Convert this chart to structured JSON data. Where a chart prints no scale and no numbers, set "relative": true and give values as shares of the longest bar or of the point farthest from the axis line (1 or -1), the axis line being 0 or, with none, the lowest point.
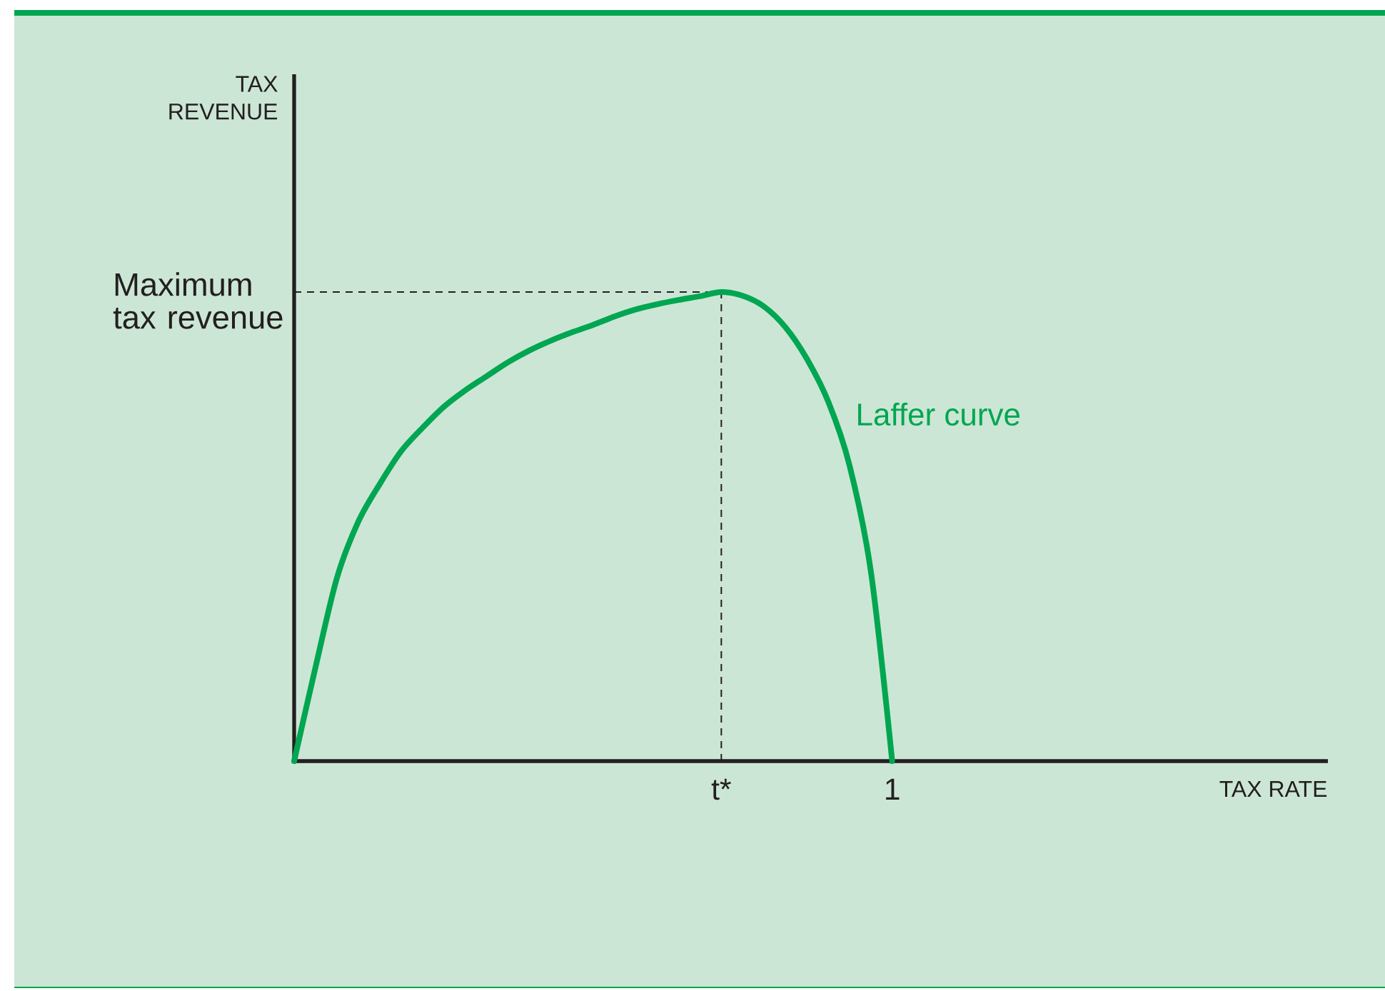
{
  "chart_data": {
    "type": "line",
    "xlabel": "TAX RATE",
    "annotations": [
      "TAX REVENUE"
    ],
    "relative": true,
    "marker": "none",
    "categories": [
      null,
      null,
      null,
      null,
      null,
      null,
      null,
      null,
      null,
      null,
      null,
      null,
      null,
      null,
      null,
      null,
      null,
      null,
      null,
      null,
      "t*",
      null,
      null,
      null,
      null,
      null,
      null,
      null,
      "1",
      null,
      null,
      null,
      null,
      null,
      null,
      null,
      null,
      null,
      null,
      null,
      null,
      null,
      null,
      null,
      null,
      null,
      null,
      null,
      null
    ],
    "series": [
      {
        "name": "Laffer curve",
        "color": "#00a651",
        "line_style": "solid",
        "values": [
          0,
          0.2,
          0.39,
          0.51,
          0.59,
          0.66,
          0.71,
          0.755,
          0.79,
          0.82,
          0.85,
          0.875,
          0.896,
          0.914,
          0.93,
          0.948,
          0.963,
          0.974,
          0.983,
          0.991,
          1,
          0.992,
          0.969,
          0.925,
          0.858,
          0.767,
          0.631,
          0.405,
          0,
          null,
          null,
          null,
          null,
          null,
          null,
          null,
          null,
          null,
          null,
          null,
          null,
          null,
          null,
          null,
          null,
          null,
          null,
          null,
          null
        ]
      }
    ],
    "ref_lines": [
      {
        "axis": "y",
        "value": 1,
        "label": "Maximum tax revenue",
        "line_style": "dashed",
        "color": "#231f20"
      },
      {
        "axis": "x",
        "value": "t*",
        "line_style": "dashed",
        "color": "#231f20"
      }
    ]
  }
}
